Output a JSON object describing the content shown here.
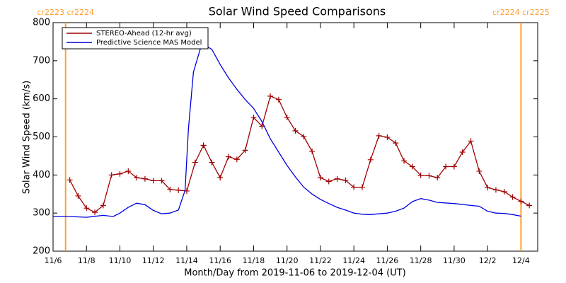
{
  "chart_data": {
    "type": "line",
    "title": "Solar Wind Speed Comparisons",
    "xlabel": "Month/Day from 2019-11-06 to 2019-12-04 (UT)",
    "ylabel": "Solar Wind Speed (km/s)",
    "xlim": [
      0,
      29
    ],
    "ylim": [
      200,
      800
    ],
    "xticks": [
      {
        "value": 0,
        "label": "11/6"
      },
      {
        "value": 2,
        "label": "11/8"
      },
      {
        "value": 4,
        "label": "11/10"
      },
      {
        "value": 6,
        "label": "11/12"
      },
      {
        "value": 8,
        "label": "11/14"
      },
      {
        "value": 10,
        "label": "11/16"
      },
      {
        "value": 12,
        "label": "11/18"
      },
      {
        "value": 14,
        "label": "11/20"
      },
      {
        "value": 16,
        "label": "11/22"
      },
      {
        "value": 18,
        "label": "11/24"
      },
      {
        "value": 20,
        "label": "11/26"
      },
      {
        "value": 22,
        "label": "11/28"
      },
      {
        "value": 24,
        "label": "11/30"
      },
      {
        "value": 26,
        "label": "12/2"
      },
      {
        "value": 28,
        "label": "12/4"
      }
    ],
    "yticks": [
      200,
      300,
      400,
      500,
      600,
      700,
      800
    ],
    "legend": "upper left",
    "annotations": [
      {
        "text": "cr2223 cr2224",
        "x": 0.75,
        "color": "#ff9f2f"
      },
      {
        "text": "cr2224 cr2225",
        "x": 28,
        "color": "#ff9f2f"
      }
    ],
    "series": [
      {
        "name": "STEREO-Ahead (12-hr avg)",
        "color": "#a00000",
        "marker": "+",
        "x": [
          1,
          1.5,
          2,
          2.5,
          3,
          3.5,
          4,
          4.5,
          5,
          5.5,
          6,
          6.5,
          7,
          7.5,
          8,
          8.5,
          9,
          9.5,
          10,
          10.5,
          11,
          11.5,
          12,
          12.5,
          13,
          13.5,
          14,
          14.5,
          15,
          15.5,
          16,
          16.5,
          17,
          17.5,
          18,
          18.5,
          19,
          19.5,
          20,
          20.5,
          21,
          21.5,
          22,
          22.5,
          23,
          23.5,
          24,
          24.5,
          25,
          25.5,
          26,
          26.5,
          27,
          27.5,
          28,
          28.5
        ],
        "values": [
          387,
          345,
          313,
          302,
          320,
          400,
          403,
          410,
          393,
          390,
          385,
          385,
          362,
          360,
          358,
          433,
          478,
          433,
          393,
          448,
          441,
          465,
          551,
          528,
          607,
          598,
          551,
          516,
          501,
          462,
          393,
          383,
          390,
          386,
          368,
          368,
          440,
          503,
          499,
          484,
          437,
          422,
          399,
          398,
          393,
          422,
          422,
          460,
          489,
          410,
          367,
          361,
          356,
          342,
          331,
          320
        ]
      },
      {
        "name": "Predictive Science MAS Model",
        "color": "#0000e0",
        "x": [
          0,
          1,
          2,
          3,
          3.6,
          4,
          4.5,
          5,
          5.5,
          6,
          6.5,
          7,
          7.5,
          7.9,
          8.1,
          8.4,
          8.8,
          9.1,
          9.5,
          10,
          10.5,
          11,
          11.5,
          12,
          12.5,
          13,
          13.5,
          14,
          14.5,
          15,
          15.5,
          16,
          16.5,
          17,
          17.5,
          18,
          18.5,
          19,
          19.5,
          20,
          20.5,
          21,
          21.5,
          22,
          22.5,
          23,
          24,
          25,
          25.5,
          26,
          26.5,
          27,
          27.5,
          28
        ],
        "values": [
          291,
          291,
          289,
          294,
          291,
          300,
          315,
          326,
          322,
          307,
          298,
          300,
          308,
          360,
          520,
          670,
          730,
          740,
          730,
          690,
          655,
          625,
          598,
          575,
          540,
          495,
          460,
          425,
          395,
          368,
          350,
          336,
          325,
          315,
          308,
          300,
          297,
          296,
          298,
          300,
          305,
          313,
          330,
          338,
          334,
          328,
          325,
          320,
          318,
          305,
          300,
          299,
          296,
          292
        ]
      }
    ]
  }
}
